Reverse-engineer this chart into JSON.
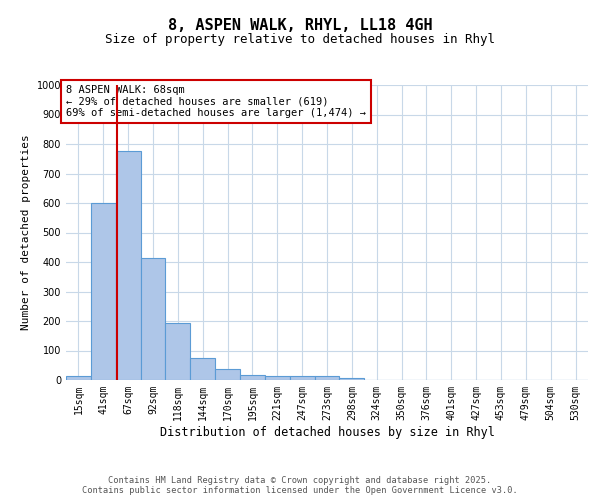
{
  "title_line1": "8, ASPEN WALK, RHYL, LL18 4GH",
  "title_line2": "Size of property relative to detached houses in Rhyl",
  "xlabel": "Distribution of detached houses by size in Rhyl",
  "ylabel": "Number of detached properties",
  "categories": [
    "15sqm",
    "41sqm",
    "67sqm",
    "92sqm",
    "118sqm",
    "144sqm",
    "170sqm",
    "195sqm",
    "221sqm",
    "247sqm",
    "273sqm",
    "298sqm",
    "324sqm",
    "350sqm",
    "376sqm",
    "401sqm",
    "427sqm",
    "453sqm",
    "479sqm",
    "504sqm",
    "530sqm"
  ],
  "values": [
    15,
    600,
    775,
    415,
    192,
    75,
    37,
    18,
    15,
    12,
    12,
    7,
    0,
    0,
    0,
    0,
    0,
    0,
    0,
    0,
    0
  ],
  "bar_color": "#aec6e8",
  "bar_edge_color": "#5b9bd5",
  "red_line_color": "#cc0000",
  "ylim": [
    0,
    1000
  ],
  "yticks": [
    0,
    100,
    200,
    300,
    400,
    500,
    600,
    700,
    800,
    900,
    1000
  ],
  "annotation_text": "8 ASPEN WALK: 68sqm\n← 29% of detached houses are smaller (619)\n69% of semi-detached houses are larger (1,474) →",
  "annotation_box_color": "#ffffff",
  "annotation_box_edge": "#cc0000",
  "footer_line1": "Contains HM Land Registry data © Crown copyright and database right 2025.",
  "footer_line2": "Contains public sector information licensed under the Open Government Licence v3.0.",
  "background_color": "#ffffff",
  "grid_color": "#c8d8e8",
  "title_fontsize": 11,
  "subtitle_fontsize": 9,
  "ylabel_fontsize": 8,
  "xlabel_fontsize": 8.5,
  "tick_fontsize": 7,
  "ann_fontsize": 7.5,
  "footer_fontsize": 6.2
}
